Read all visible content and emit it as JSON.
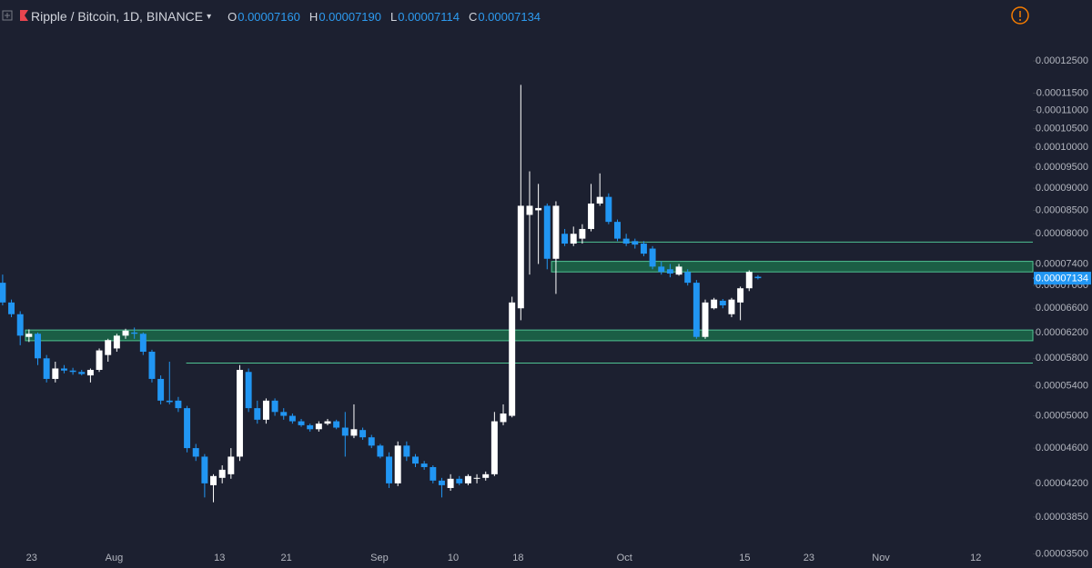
{
  "chart_data": {
    "type": "candlestick",
    "title": "Ripple / Bitcoin, 1D, BINANCE",
    "ohlc_legend": [
      {
        "label": "O",
        "value": "0.00007160"
      },
      {
        "label": "H",
        "value": "0.00007190"
      },
      {
        "label": "L",
        "value": "0.00007114"
      },
      {
        "label": "C",
        "value": "0.00007134"
      }
    ],
    "up_color": "#ffffff",
    "down_color": "#2196f3",
    "log_scale": true,
    "open": [
      7.05e-05,
      6.7e-05,
      6.5e-05,
      6.13e-05,
      6.18e-05,
      5.8e-05,
      5.5e-05,
      5.65e-05,
      5.62e-05,
      5.6e-05,
      5.55e-05,
      5.63e-05,
      5.85e-05,
      5.95e-05,
      6.15e-05,
      6.2e-05,
      6.18e-05,
      5.9e-05,
      5.5e-05,
      5.2e-05,
      5.2e-05,
      5.1e-05,
      4.6e-05,
      4.5e-05,
      4.18e-05,
      4.26e-05,
      4.3e-05,
      4.5e-05,
      5.6e-05,
      5.1e-05,
      4.95e-05,
      5.2e-05,
      5.05e-05,
      5e-05,
      4.93e-05,
      4.88e-05,
      4.83e-05,
      4.9e-05,
      4.93e-05,
      4.85e-05,
      4.75e-05,
      4.82e-05,
      4.73e-05,
      4.63e-05,
      4.5e-05,
      4.2e-05,
      4.63e-05,
      4.5e-05,
      4.42e-05,
      4.38e-05,
      4.23e-05,
      4.15e-05,
      4.25e-05,
      4.2e-05,
      4.25e-05,
      4.26e-05,
      4.3e-05,
      4.92e-05,
      5e-05,
      6.6e-05,
      8.4e-05,
      8.5e-05,
      8.6e-05,
      7.5e-05,
      8e-05,
      7.8e-05,
      7.9e-05,
      8.1e-05,
      8.65e-05,
      8.8e-05,
      8.25e-05,
      7.9e-05,
      7.85e-05,
      7.8e-05,
      7.7e-05,
      7.35e-05,
      7.3e-05,
      7.2e-05,
      7.25e-05,
      7.05e-05,
      6.13e-05,
      6.6e-05,
      6.73e-05,
      6.5e-05,
      6.7e-05,
      6.95e-05,
      7.16e-05
    ],
    "high": [
      7.2e-05,
      6.75e-05,
      6.55e-05,
      6.25e-05,
      6.2e-05,
      5.85e-05,
      5.75e-05,
      5.7e-05,
      5.66e-05,
      5.63e-05,
      5.65e-05,
      5.95e-05,
      6.1e-05,
      6.18e-05,
      6.26e-05,
      6.28e-05,
      6.2e-05,
      5.93e-05,
      5.55e-05,
      5.75e-05,
      5.25e-05,
      5.13e-05,
      4.65e-05,
      4.53e-05,
      4.3e-05,
      4.4e-05,
      4.6e-05,
      5.7e-05,
      5.65e-05,
      5.2e-05,
      5.23e-05,
      5.23e-05,
      5.1e-05,
      5.03e-05,
      4.96e-05,
      4.9e-05,
      4.93e-05,
      4.96e-05,
      4.95e-05,
      5.05e-05,
      5.15e-05,
      4.85e-05,
      4.76e-05,
      4.65e-05,
      4.55e-05,
      4.68e-05,
      4.68e-05,
      4.53e-05,
      4.45e-05,
      4.4e-05,
      4.26e-05,
      4.3e-05,
      4.28e-05,
      4.3e-05,
      4.3e-05,
      4.33e-05,
      5.05e-05,
      5.15e-05,
      6.8e-05,
      0.0001175,
      9.4e-05,
      9.1e-05,
      8.65e-05,
      8.7e-05,
      8.1e-05,
      8.15e-05,
      8.2e-05,
      9.1e-05,
      9.35e-05,
      8.88e-05,
      8.3e-05,
      8e-05,
      7.9e-05,
      7.85e-05,
      7.75e-05,
      7.45e-05,
      7.4e-05,
      7.4e-05,
      7.3e-05,
      7.1e-05,
      6.75e-05,
      6.78e-05,
      6.76e-05,
      6.78e-05,
      6.98e-05,
      7.28e-05,
      7.19e-05
    ],
    "low": [
      6.65e-05,
      6.45e-05,
      6e-05,
      6.05e-05,
      5.7e-05,
      5.45e-05,
      5.45e-05,
      5.58e-05,
      5.56e-05,
      5.55e-05,
      5.45e-05,
      5.6e-05,
      5.75e-05,
      5.9e-05,
      6.1e-05,
      6.1e-05,
      5.85e-05,
      5.45e-05,
      5.15e-05,
      5.15e-05,
      5.05e-05,
      4.55e-05,
      4.45e-05,
      4.05e-05,
      4e-05,
      4.2e-05,
      4.25e-05,
      4.45e-05,
      5.05e-05,
      4.9e-05,
      4.9e-05,
      5e-05,
      4.95e-05,
      4.9e-05,
      4.86e-05,
      4.8e-05,
      4.8e-05,
      4.88e-05,
      4.83e-05,
      4.5e-05,
      4.72e-05,
      4.7e-05,
      4.6e-05,
      4.48e-05,
      4.15e-05,
      4.17e-05,
      4.45e-05,
      4.38e-05,
      4.35e-05,
      4.2e-05,
      4.05e-05,
      4.12e-05,
      4.18e-05,
      4.18e-05,
      4.2e-05,
      4.23e-05,
      4.28e-05,
      4.88e-05,
      4.98e-05,
      6.4e-05,
      7.2e-05,
      7.4e-05,
      7.3e-05,
      6.85e-05,
      7.75e-05,
      7.75e-05,
      7.8e-05,
      8.05e-05,
      8.6e-05,
      8.2e-05,
      7.85e-05,
      7.75e-05,
      7.7e-05,
      7.55e-05,
      7.3e-05,
      7.2e-05,
      7.15e-05,
      7.18e-05,
      7e-05,
      6.1e-05,
      6.1e-05,
      6.58e-05,
      6.6e-05,
      6.45e-05,
      6.4e-05,
      6.9e-05,
      7.11e-05
    ],
    "close": [
      6.7e-05,
      6.5e-05,
      6.15e-05,
      6.18e-05,
      5.8e-05,
      5.5e-05,
      5.65e-05,
      5.62e-05,
      5.6e-05,
      5.57e-05,
      5.63e-05,
      5.92e-05,
      6.08e-05,
      6.15e-05,
      6.23e-05,
      6.18e-05,
      5.9e-05,
      5.5e-05,
      5.2e-05,
      5.18e-05,
      5.1e-05,
      4.6e-05,
      4.5e-05,
      4.2e-05,
      4.28e-05,
      4.35e-05,
      4.5e-05,
      5.63e-05,
      5.1e-05,
      4.95e-05,
      5.2e-05,
      5.05e-05,
      5e-05,
      4.93e-05,
      4.88e-05,
      4.83e-05,
      4.9e-05,
      4.93e-05,
      4.85e-05,
      4.75e-05,
      4.83e-05,
      4.73e-05,
      4.63e-05,
      4.5e-05,
      4.2e-05,
      4.63e-05,
      4.5e-05,
      4.42e-05,
      4.38e-05,
      4.23e-05,
      4.18e-05,
      4.25e-05,
      4.2e-05,
      4.28e-05,
      4.26e-05,
      4.3e-05,
      4.93e-05,
      5.03e-05,
      6.7e-05,
      8.6e-05,
      8.6e-05,
      8.55e-05,
      7.5e-05,
      8.6e-05,
      7.8e-05,
      8e-05,
      8.1e-05,
      8.65e-05,
      8.8e-05,
      8.25e-05,
      7.9e-05,
      7.8e-05,
      7.78e-05,
      7.6e-05,
      7.35e-05,
      7.25e-05,
      7.22e-05,
      7.35e-05,
      7.05e-05,
      6.13e-05,
      6.7e-05,
      6.75e-05,
      6.65e-05,
      6.75e-05,
      6.95e-05,
      7.25e-05,
      7.134e-05
    ],
    "xlim": [
      -0.3,
      117.3
    ],
    "xticks": [
      {
        "value": 3.3,
        "label": "23"
      },
      {
        "value": 12.7,
        "label": "Aug"
      },
      {
        "value": 24.7,
        "label": "13"
      },
      {
        "value": 32.3,
        "label": "21"
      },
      {
        "value": 42.9,
        "label": "Sep"
      },
      {
        "value": 51.3,
        "label": "10"
      },
      {
        "value": 58.7,
        "label": "18"
      },
      {
        "value": 70.8,
        "label": "Oct"
      },
      {
        "value": 84.5,
        "label": "15"
      },
      {
        "value": 91.8,
        "label": "23"
      },
      {
        "value": 100,
        "label": "Nov"
      },
      {
        "value": 110.8,
        "label": "12"
      }
    ],
    "ylim": [
      3.48e-05,
      0.0001463
    ],
    "yticks": [
      {
        "value": 0.000125,
        "label": "0.00012500"
      },
      {
        "value": 0.000115,
        "label": "0.00011500"
      },
      {
        "value": 0.00011,
        "label": "0.00011000"
      },
      {
        "value": 0.000105,
        "label": "0.00010500"
      },
      {
        "value": 0.0001,
        "label": "0.00010000"
      },
      {
        "value": 9.5e-05,
        "label": "0.00009500"
      },
      {
        "value": 9e-05,
        "label": "0.00009000"
      },
      {
        "value": 8.5e-05,
        "label": "0.00008500"
      },
      {
        "value": 8e-05,
        "label": "0.00008000"
      },
      {
        "value": 7.4e-05,
        "label": "0.00007400"
      },
      {
        "value": 7e-05,
        "label": "0.00007000"
      },
      {
        "value": 6.6e-05,
        "label": "0.00006600"
      },
      {
        "value": 6.2e-05,
        "label": "0.00006200"
      },
      {
        "value": 5.8e-05,
        "label": "0.00005800"
      },
      {
        "value": 5.4e-05,
        "label": "0.00005400"
      },
      {
        "value": 5e-05,
        "label": "0.00005000"
      },
      {
        "value": 4.6e-05,
        "label": "0.00004600"
      },
      {
        "value": 4.2e-05,
        "label": "0.00004200"
      },
      {
        "value": 3.85e-05,
        "label": "0.00003850"
      },
      {
        "value": 3.5e-05,
        "label": "0.00003500"
      }
    ],
    "last_price": {
      "value": 7.134e-05,
      "label": "0.00007134"
    },
    "zones": [
      {
        "ylim": [
          7.25e-05,
          7.45e-05
        ],
        "xstart": 62.5
      },
      {
        "ylim": [
          6.07e-05,
          6.24e-05
        ],
        "xstart": 2.6
      }
    ],
    "levels": [
      {
        "y": 7.83e-05,
        "xstart": 65.1
      },
      {
        "y": 5.73e-05,
        "xstart": 20.9
      }
    ]
  }
}
